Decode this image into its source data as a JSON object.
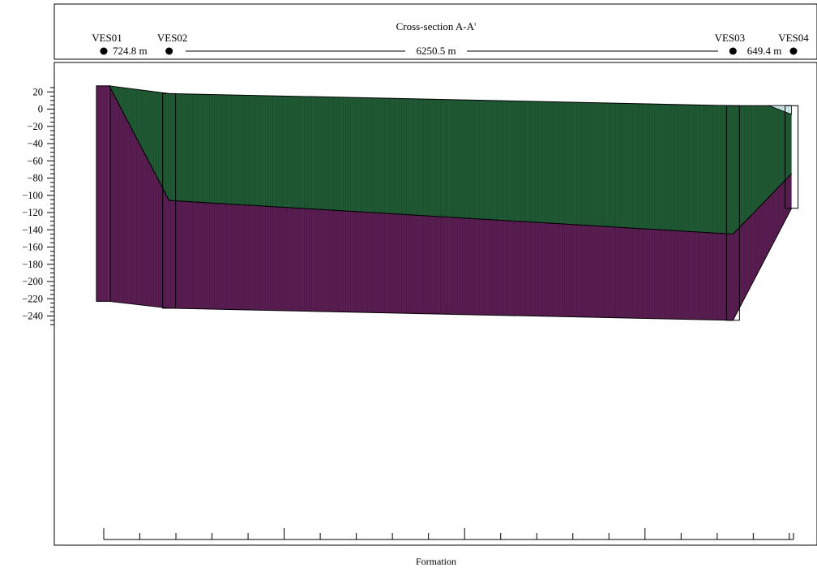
{
  "title": "Cross-section A-A'",
  "footer_label": "Formation",
  "colors": {
    "upper_layer": "#1f5a34",
    "lower_layer": "#5a1d52",
    "surface_pocket": "#d8f0f0",
    "outline": "#000000"
  },
  "stations": [
    {
      "label": "VES01",
      "x": 0
    },
    {
      "label": "VES02",
      "x": 724.8
    },
    {
      "label": "VES03",
      "x": 6975.3
    },
    {
      "label": "VES04",
      "x": 7624.7
    }
  ],
  "spacings": [
    "724.8 m",
    "6250.5 m",
    "649.4 m"
  ],
  "depth_ticks": [
    "20",
    "0",
    "−20",
    "−40",
    "−60",
    "−80",
    "−100",
    "−120",
    "−140",
    "−160",
    "−180",
    "−200",
    "−220",
    "−240"
  ],
  "distance_ticks": [
    "0",
    "2000",
    "4000",
    "6000"
  ],
  "chart_data": {
    "type": "cross-section",
    "title": "Cross-section A-A'",
    "xlabel": "Formation",
    "ylabel": "",
    "y_range": [
      -250,
      27
    ],
    "x_range": [
      -550,
      7650
    ],
    "y_major_ticks": [
      20,
      0,
      -20,
      -40,
      -60,
      -80,
      -100,
      -120,
      -140,
      -160,
      -180,
      -200,
      -220,
      -240
    ],
    "x_major_ticks": [
      0,
      2000,
      4000,
      6000
    ],
    "layers": [
      {
        "color": "#1f5a34",
        "top": [
          [
            60,
            27
          ],
          [
            724.8,
            18
          ],
          [
            6975.3,
            4
          ],
          [
            7624.7,
            4
          ]
        ],
        "bottom": [
          [
            60,
            27
          ],
          [
            724.8,
            -106
          ],
          [
            6975.3,
            -145
          ],
          [
            7624.7,
            -75
          ]
        ]
      },
      {
        "color": "#5a1d52",
        "top": [
          [
            60,
            27
          ],
          [
            724.8,
            -106
          ],
          [
            6975.3,
            -145
          ],
          [
            7624.7,
            -75
          ]
        ],
        "bottom": [
          [
            60,
            -223
          ],
          [
            724.8,
            -231
          ],
          [
            6975.3,
            -245
          ],
          [
            7624.7,
            -115
          ]
        ]
      }
    ],
    "boreholes": [
      {
        "station": "VES01",
        "x": 0,
        "top": 27,
        "bottom": -223
      },
      {
        "station": "VES02",
        "x": 724.8,
        "top": 18,
        "bottom": -231
      },
      {
        "station": "VES03",
        "x": 6975.3,
        "top": 4,
        "bottom": -245
      },
      {
        "station": "VES04",
        "x": 7624.7,
        "top": 4,
        "bottom": -115
      }
    ],
    "surface_pocket": [
      [
        7375,
        4
      ],
      [
        7624.7,
        4
      ],
      [
        7624.7,
        -6
      ]
    ]
  }
}
